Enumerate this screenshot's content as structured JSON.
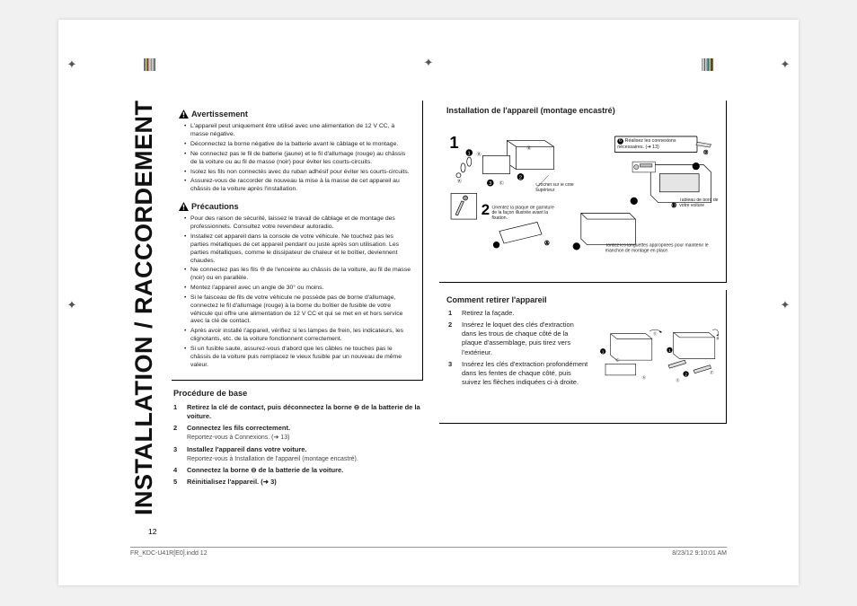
{
  "vertical_title": "INSTALLATION / RACCORDEMENT",
  "page_number": "12",
  "footer_left": "FR_KDC-U41R[E0].indd   12",
  "footer_right": "8/23/12   9:10:01 AM",
  "color_bar": [
    "#00aeef",
    "#ec008c",
    "#fff200",
    "#231f20",
    "#00a651",
    "#ed1c24",
    "#9b9b9b",
    "#c9c9c9",
    "#bfbfbf",
    "#8a8a8a",
    "#5e5e5e",
    "#cfcfcf",
    "#a9a9a9",
    "#878787",
    "#636363"
  ],
  "color_bar_right": [
    "#9b9b9b",
    "#c9c9c9",
    "#bfbfbf",
    "#8a8a8a",
    "#5e5e5e",
    "#cfcfcf",
    "#a9a9a9",
    "#878787",
    "#636363",
    "#00aeef",
    "#ec008c",
    "#fff200",
    "#231f20",
    "#00a651",
    "#ed1c24"
  ],
  "avertissement": {
    "title": "Avertissement",
    "items": [
      "L'appareil peut uniquement être utilisé avec une alimentation de 12 V CC, à masse négative.",
      "Déconnectez la borne négative de la batterie avant le câblage et le montage.",
      "Ne connectez pas le fil de batterie (jaune) et le fil d'allumage (rouge) au châssis de la voiture ou au fil de masse (noir) pour éviter les courts-circuits.",
      "Isolez les fils non connectés avec du ruban adhésif pour éviter les courts-circuits.",
      "Assurez-vous de raccorder de nouveau la mise à la masse de cet appareil au châssis de la voiture après l'installation."
    ]
  },
  "precautions": {
    "title": "Précautions",
    "items": [
      "Pour des raison de sécurité, laissez le travail de câblage et de montage des professionnels. Consultez votre revendeur autoradio.",
      "Installez cet appareil dans la console de votre véhicule. Ne touchez pas les parties métalliques de cet appareil pendant ou juste après son utilisation. Les parties métalliques, comme le dissipateur de chaleur et le boîtier, deviennent chaudes.",
      "Ne connectez pas les fils ⊖ de l'enceinte au châssis de la voiture, au fil de masse (noir) ou en parallèle.",
      "Montez l'appareil avec un angle de 30° ou moins.",
      "Si le faisceau de fils de votre véhicule ne possède pas de borne d'allumage, connectez le fil d'allumage (rouge) à la borne du boîtier de fusible de votre véhicule qui offre une alimentation de 12 V CC et qui se met en et hors service avec la clé de contact.",
      "Après avoir installé l'appareil, vérifiez si les lampes de frein, les indicateurs, les clignotants, etc. de la voiture fonctionnent correctement.",
      "Si un fusible saute, assurez-vous d'abord que les câbles ne touches pas le châssis de la voiture puis remplacez le vieux fusible par un nouveau de même valeur."
    ]
  },
  "procedure": {
    "title": "Procédure de base",
    "steps": [
      {
        "n": "1",
        "t": "Retirez la clé de contact, puis déconnectez la borne ⊖ de la batterie de la voiture.",
        "bold": true
      },
      {
        "n": "2",
        "t": "Connectez les fils correctement.",
        "bold": true,
        "sub": "Reportez-vous à Connexions. (➜ 13)"
      },
      {
        "n": "3",
        "t": "Installez l'appareil dans votre voiture.",
        "bold": true,
        "sub": "Reportez-vous à Installation de l'appareil (montage encastré)."
      },
      {
        "n": "4",
        "t": "Connectez la borne ⊖ de la batterie de la voiture.",
        "bold": true
      },
      {
        "n": "5",
        "t": "Réinitialisez l'appareil. (➜ 3)",
        "bold": true
      }
    ]
  },
  "install": {
    "title": "Installation de l'appareil (montage encastré)",
    "annot": {
      "crochet": "Crochet sur le côté supérieur",
      "orient": "Orientez la plaque de garniture de la façon illustrée avant la fixation.",
      "conn": "Réalisez les connexions nécessaires. (➜ 13)",
      "tableau": "Tableau de bord de votre voiture",
      "tordez": "Tordez les languettes appropriées pour maintenir le manchon de montage en place."
    }
  },
  "retirer": {
    "title": "Comment retirer l'appareil",
    "steps": [
      {
        "n": "1",
        "t": "Retirez la façade."
      },
      {
        "n": "2",
        "t": "Insérez le loquet des clés d'extraction dans les trous de chaque côté de la plaque d'assemblage, puis tirez vers l'extérieur."
      },
      {
        "n": "3",
        "t": "Insérez les clés d'extraction profondément dans les fentes de chaque côté, puis suivez les flèches indiquées ci-à droite."
      }
    ]
  }
}
